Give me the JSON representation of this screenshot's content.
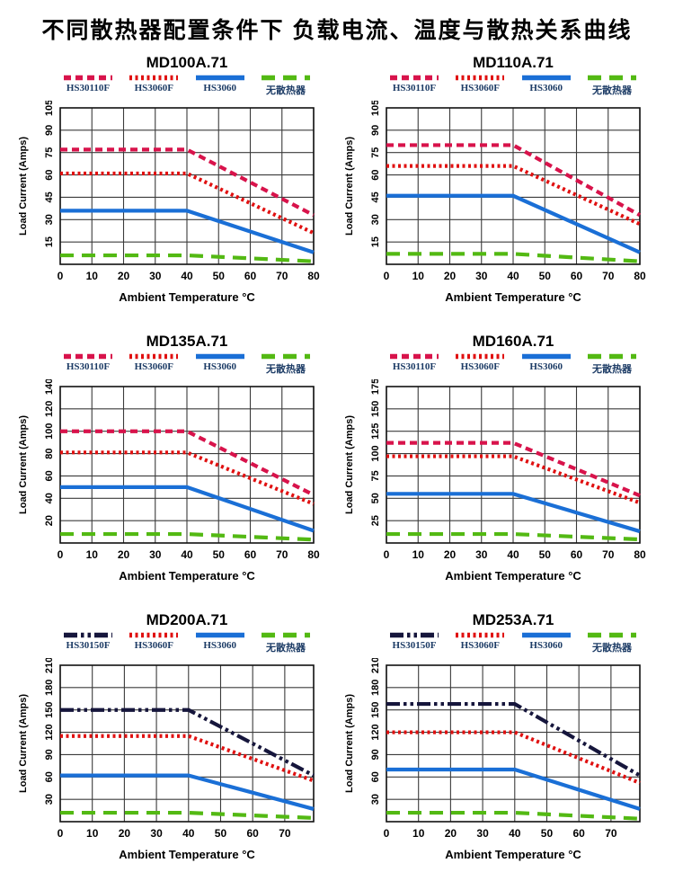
{
  "page_title": "不同散热器配置条件下  负载电流、温度与散热关系曲线",
  "colors": {
    "crimson_dashed": "#d8134b",
    "red_dotted": "#e01010",
    "blue_solid": "#1a6fd6",
    "green_longdash": "#53b913",
    "navy_dashdotdot": "#16163c",
    "legend_text": "#1d3c66",
    "grid": "#3b3b3b",
    "border": "#111111"
  },
  "chart_data": [
    {
      "type": "line",
      "title": "MD100A.71",
      "xlabel": "Ambient Temperature °C",
      "ylabel": "Load Current (Amps)",
      "ylim": [
        0,
        105
      ],
      "ystep": 15,
      "xlim": [
        0,
        80
      ],
      "xticks": [
        0,
        10,
        20,
        30,
        40,
        50,
        60,
        70,
        80
      ],
      "series": [
        {
          "name": "HS30110F",
          "style": "dashed",
          "color": "#d8134b",
          "x": [
            0,
            40,
            80
          ],
          "y": [
            77,
            77,
            33
          ]
        },
        {
          "name": "HS3060F",
          "style": "dotted",
          "color": "#e01010",
          "x": [
            0,
            40,
            80
          ],
          "y": [
            61,
            61,
            21
          ]
        },
        {
          "name": "HS3060",
          "style": "solid",
          "color": "#1a6fd6",
          "x": [
            0,
            40,
            80
          ],
          "y": [
            36,
            36,
            8
          ]
        },
        {
          "name": "无散热器",
          "style": "longdash",
          "color": "#53b913",
          "x": [
            0,
            40,
            80
          ],
          "y": [
            6,
            6,
            2
          ]
        }
      ]
    },
    {
      "type": "line",
      "title": "MD110A.71",
      "xlabel": "Ambient Temperature °C",
      "ylabel": "Load Current (Amps)",
      "ylim": [
        0,
        105
      ],
      "ystep": 15,
      "xlim": [
        0,
        80
      ],
      "xticks": [
        0,
        10,
        20,
        30,
        40,
        50,
        60,
        70,
        80
      ],
      "series": [
        {
          "name": "HS30110F",
          "style": "dashed",
          "color": "#d8134b",
          "x": [
            0,
            40,
            80
          ],
          "y": [
            80,
            80,
            33
          ]
        },
        {
          "name": "HS3060F",
          "style": "dotted",
          "color": "#e01010",
          "x": [
            0,
            40,
            80
          ],
          "y": [
            66,
            66,
            27
          ]
        },
        {
          "name": "HS3060",
          "style": "solid",
          "color": "#1a6fd6",
          "x": [
            0,
            40,
            80
          ],
          "y": [
            46,
            46,
            8
          ]
        },
        {
          "name": "无散热器",
          "style": "longdash",
          "color": "#53b913",
          "x": [
            0,
            40,
            80
          ],
          "y": [
            7,
            7,
            2
          ]
        }
      ]
    },
    {
      "type": "line",
      "title": "MD135A.71",
      "xlabel": "Ambient Temperature °C",
      "ylabel": "Load Current (Amps)",
      "ylim": [
        0,
        140
      ],
      "ystep": 20,
      "xlim": [
        0,
        80
      ],
      "xticks": [
        0,
        10,
        20,
        30,
        40,
        50,
        60,
        70,
        80
      ],
      "series": [
        {
          "name": "HS30110F",
          "style": "dashed",
          "color": "#d8134b",
          "x": [
            0,
            40,
            80
          ],
          "y": [
            100,
            100,
            43
          ]
        },
        {
          "name": "HS3060F",
          "style": "dotted",
          "color": "#e01010",
          "x": [
            0,
            40,
            80
          ],
          "y": [
            81,
            81,
            35
          ]
        },
        {
          "name": "HS3060",
          "style": "solid",
          "color": "#1a6fd6",
          "x": [
            0,
            40,
            80
          ],
          "y": [
            50,
            50,
            11
          ]
        },
        {
          "name": "无散热器",
          "style": "longdash",
          "color": "#53b913",
          "x": [
            0,
            40,
            80
          ],
          "y": [
            8,
            8,
            3
          ]
        }
      ]
    },
    {
      "type": "line",
      "title": "MD160A.71",
      "xlabel": "Ambient Temperature °C",
      "ylabel": "Load Current (Amps)",
      "ylim": [
        0,
        175
      ],
      "ystep": 25,
      "xlim": [
        0,
        80
      ],
      "xticks": [
        0,
        10,
        20,
        30,
        40,
        50,
        60,
        70,
        80
      ],
      "series": [
        {
          "name": "HS30110F",
          "style": "dashed",
          "color": "#d8134b",
          "x": [
            0,
            40,
            80
          ],
          "y": [
            112,
            112,
            53
          ]
        },
        {
          "name": "HS3060F",
          "style": "dotted",
          "color": "#e01010",
          "x": [
            0,
            40,
            80
          ],
          "y": [
            97,
            97,
            45
          ]
        },
        {
          "name": "HS3060",
          "style": "solid",
          "color": "#1a6fd6",
          "x": [
            0,
            40,
            80
          ],
          "y": [
            55,
            55,
            13
          ]
        },
        {
          "name": "无散热器",
          "style": "longdash",
          "color": "#53b913",
          "x": [
            0,
            40,
            80
          ],
          "y": [
            10,
            10,
            4
          ]
        }
      ]
    },
    {
      "type": "line",
      "title": "MD200A.71",
      "xlabel": "Ambient Temperature °C",
      "ylabel": "Load Current (Amps)",
      "ylim": [
        0,
        210
      ],
      "ystep": 30,
      "xlim": [
        0,
        79
      ],
      "xticks": [
        0,
        10,
        20,
        30,
        40,
        50,
        60,
        70
      ],
      "series": [
        {
          "name": "HS30150F",
          "style": "dashdotdot",
          "color": "#16163c",
          "x": [
            0,
            40,
            79
          ],
          "y": [
            150,
            150,
            62
          ]
        },
        {
          "name": "HS3060F",
          "style": "dotted",
          "color": "#e01010",
          "x": [
            0,
            40,
            79
          ],
          "y": [
            115,
            115,
            55
          ]
        },
        {
          "name": "HS3060",
          "style": "solid",
          "color": "#1a6fd6",
          "x": [
            0,
            40,
            79
          ],
          "y": [
            62,
            62,
            17
          ]
        },
        {
          "name": "无散热器",
          "style": "longdash",
          "color": "#53b913",
          "x": [
            0,
            40,
            79
          ],
          "y": [
            12,
            12,
            5
          ]
        }
      ]
    },
    {
      "type": "line",
      "title": "MD253A.71",
      "xlabel": "Ambient Temperature °C",
      "ylabel": "Load Current (Amps)",
      "ylim": [
        0,
        210
      ],
      "ystep": 30,
      "xlim": [
        0,
        79
      ],
      "xticks": [
        0,
        10,
        20,
        30,
        40,
        50,
        60,
        70
      ],
      "series": [
        {
          "name": "HS30150F",
          "style": "dashdotdot",
          "color": "#16163c",
          "x": [
            0,
            40,
            79
          ],
          "y": [
            158,
            158,
            62
          ]
        },
        {
          "name": "HS3060F",
          "style": "dotted",
          "color": "#e01010",
          "x": [
            0,
            40,
            79
          ],
          "y": [
            120,
            120,
            52
          ]
        },
        {
          "name": "HS3060",
          "style": "solid",
          "color": "#1a6fd6",
          "x": [
            0,
            40,
            79
          ],
          "y": [
            70,
            70,
            17
          ]
        },
        {
          "name": "无散热器",
          "style": "longdash",
          "color": "#53b913",
          "x": [
            0,
            40,
            79
          ],
          "y": [
            12,
            12,
            4
          ]
        }
      ]
    }
  ]
}
